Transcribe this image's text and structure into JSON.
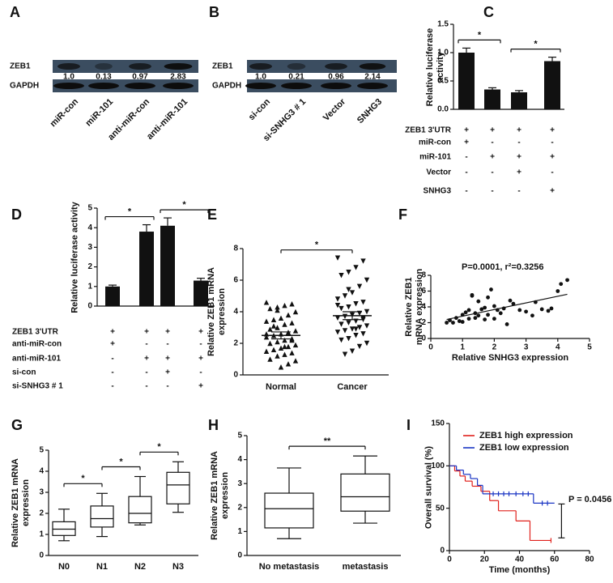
{
  "chart_data": [
    {
      "type": "blot",
      "label": "A",
      "rows": [
        "ZEB1",
        "GAPDH"
      ],
      "categories": [
        "miR-con",
        "miR-101",
        "anti-miR-con",
        "anti-miR-101"
      ],
      "values": [
        1.0,
        0.13,
        0.97,
        2.83
      ],
      "value_labels": [
        "1.0",
        "0.13",
        "0.97",
        "2.83"
      ]
    },
    {
      "type": "blot",
      "label": "B",
      "rows": [
        "ZEB1",
        "GAPDH"
      ],
      "categories": [
        "si-con",
        "si-SNHG3 # 1",
        "Vector",
        "SNHG3"
      ],
      "values": [
        1.0,
        0.21,
        0.96,
        2.14
      ],
      "value_labels": [
        "1.0",
        "0.21",
        "0.96",
        "2.14"
      ]
    },
    {
      "type": "bar",
      "label": "C",
      "ylabel": "Relative luciferase activity",
      "ylim": [
        0,
        1.5
      ],
      "yticks": [
        {
          "value": 0,
          "label": "0.0"
        },
        0.5,
        {
          "value": 1,
          "label": "1.0"
        },
        1.5
      ],
      "color": "#111111",
      "values": [
        1.0,
        0.35,
        0.3,
        0.85
      ],
      "errors": [
        0.08,
        0.03,
        0.03,
        0.07
      ],
      "conditions": [
        {
          "name": "ZEB1 3'UTR",
          "signs": [
            "+",
            "+",
            "+",
            "+"
          ]
        },
        {
          "name": "miR-con",
          "signs": [
            "+",
            "-",
            "-",
            "-"
          ]
        },
        {
          "name": "miR-101",
          "signs": [
            "-",
            "+",
            "+",
            "+"
          ]
        },
        {
          "name": "Vector",
          "signs": [
            "-",
            "-",
            "+",
            "-"
          ]
        },
        {
          "name": "SNHG3",
          "signs": [
            "-",
            "-",
            "-",
            "+"
          ]
        }
      ],
      "brackets": [
        {
          "pair": [
            0,
            1
          ],
          "label": "*"
        },
        {
          "pair": [
            2,
            3
          ],
          "label": "*"
        }
      ]
    },
    {
      "type": "bar",
      "label": "D",
      "ylabel": "Relative luciferase activity",
      "ylim": [
        0,
        5
      ],
      "yticks": [
        0,
        1,
        2,
        3,
        4,
        5
      ],
      "color": "#111111",
      "values": [
        1.0,
        3.8,
        4.1,
        1.3
      ],
      "errors": [
        0.07,
        0.35,
        0.4,
        0.12
      ],
      "conditions": [
        {
          "name": "ZEB1 3'UTR",
          "signs": [
            "+",
            "+",
            "+",
            "+"
          ]
        },
        {
          "name": "anti-miR-con",
          "signs": [
            "+",
            "-",
            "-",
            "-"
          ]
        },
        {
          "name": "anti-miR-101",
          "signs": [
            "-",
            "+",
            "+",
            "+"
          ]
        },
        {
          "name": "si-con",
          "signs": [
            "-",
            "-",
            "+",
            "-"
          ]
        },
        {
          "name": "si-SNHG3 # 1",
          "signs": [
            "-",
            "-",
            "-",
            "+"
          ]
        }
      ],
      "brackets": [
        {
          "pair": [
            0,
            1
          ],
          "label": "*"
        },
        {
          "pair": [
            2,
            3
          ],
          "label": "*"
        }
      ]
    },
    {
      "type": "dot",
      "label": "E",
      "ylabel": "Relative ZEB1 mRNA expression",
      "ylim": [
        0,
        8
      ],
      "yticks": [
        0,
        2,
        4,
        6,
        8
      ],
      "categories": [
        "Normal",
        "Cancer"
      ],
      "values": [
        [
          4.6,
          4.5,
          4.4,
          4.3,
          4.2,
          4.0,
          3.8,
          3.6,
          3.5,
          3.4,
          3.3,
          3.2,
          3.0,
          2.9,
          2.8,
          2.7,
          2.6,
          2.5,
          2.4,
          2.3,
          2.2,
          2.1,
          2.0,
          1.9,
          1.8,
          1.7,
          1.6,
          1.5,
          1.4,
          1.3,
          1.2,
          1.0,
          0.9,
          0.7,
          0.5,
          3.1,
          2.6,
          2.2,
          1.8,
          4.1
        ],
        [
          7.4,
          7.2,
          6.8,
          6.5,
          6.3,
          6.0,
          5.6,
          5.2,
          5.0,
          4.8,
          4.6,
          4.5,
          4.3,
          4.2,
          4.0,
          3.9,
          3.8,
          3.7,
          3.6,
          3.5,
          3.4,
          3.3,
          3.2,
          3.1,
          3.0,
          2.9,
          2.8,
          2.7,
          2.6,
          2.5,
          2.3,
          2.2,
          2.0,
          1.8,
          1.5,
          1.3,
          4.4,
          3.6,
          2.9,
          5.4
        ]
      ],
      "means": [
        2.5,
        3.75
      ],
      "sems": [
        0.22,
        0.25
      ],
      "brackets": [
        {
          "pair": [
            0,
            1
          ],
          "label": "*"
        }
      ]
    },
    {
      "type": "scatter",
      "label": "F",
      "annotation": "P=0.0001,  r²=0.3256",
      "xlabel": "Relative SNHG3 expression",
      "ylabel": "Relative ZEB1 mRNA expression",
      "xlim": [
        0,
        5
      ],
      "xticks": [
        0,
        1,
        2,
        3,
        4,
        5
      ],
      "ylim": [
        0,
        8
      ],
      "yticks": [
        0,
        2,
        4,
        6,
        8
      ],
      "x": [
        0.5,
        0.6,
        0.7,
        0.8,
        0.9,
        1.0,
        1.0,
        1.1,
        1.2,
        1.2,
        1.3,
        1.4,
        1.4,
        1.5,
        1.5,
        1.6,
        1.7,
        1.8,
        1.8,
        1.9,
        2.0,
        2.0,
        2.1,
        2.2,
        2.3,
        2.4,
        2.5,
        2.6,
        2.8,
        3.0,
        3.2,
        3.3,
        3.5,
        3.7,
        3.8,
        4.0,
        4.1,
        4.3,
        1.3,
        1.7
      ],
      "y": [
        2.0,
        2.3,
        2.0,
        2.6,
        2.2,
        3.0,
        2.1,
        3.3,
        2.5,
        3.6,
        5.4,
        3.2,
        2.6,
        4.7,
        2.9,
        3.7,
        2.4,
        5.2,
        3.0,
        6.2,
        2.5,
        4.1,
        3.6,
        3.2,
        3.8,
        1.8,
        4.8,
        4.4,
        3.6,
        3.4,
        2.9,
        4.6,
        3.7,
        3.5,
        3.8,
        6.0,
        6.9,
        7.4,
        5.5,
        3.9
      ],
      "fit": {
        "x": [
          0.5,
          4.3
        ],
        "y": [
          2.4,
          5.6
        ]
      }
    },
    {
      "type": "box",
      "label": "G",
      "ylabel": "Relative ZEB1 mRNA expression",
      "ylim": [
        0,
        5
      ],
      "yticks": [
        0,
        1,
        2,
        3,
        4,
        5
      ],
      "categories": [
        "N0",
        "N1",
        "N2",
        "N3"
      ],
      "boxes": [
        {
          "min": 0.7,
          "q1": 0.95,
          "median": 1.25,
          "q3": 1.6,
          "max": 2.2
        },
        {
          "min": 0.9,
          "q1": 1.35,
          "median": 1.75,
          "q3": 2.35,
          "max": 2.95
        },
        {
          "min": 1.45,
          "q1": 1.55,
          "median": 2.0,
          "q3": 2.8,
          "max": 3.75
        },
        {
          "min": 2.05,
          "q1": 2.45,
          "median": 3.35,
          "q3": 3.95,
          "max": 4.45
        }
      ],
      "brackets": [
        {
          "pair": [
            0,
            1
          ],
          "label": "*"
        },
        {
          "pair": [
            1,
            2
          ],
          "label": "*"
        },
        {
          "pair": [
            2,
            3
          ],
          "label": "*"
        }
      ]
    },
    {
      "type": "box",
      "label": "H",
      "ylabel": "Relative ZEB1 mRNA expression",
      "ylim": [
        0,
        5
      ],
      "yticks": [
        0,
        1,
        2,
        3,
        4,
        5
      ],
      "categories": [
        "No metastasis",
        "metastasis"
      ],
      "boxes": [
        {
          "min": 0.7,
          "q1": 1.15,
          "median": 1.95,
          "q3": 2.6,
          "max": 3.65
        },
        {
          "min": 1.35,
          "q1": 1.85,
          "median": 2.45,
          "q3": 3.4,
          "max": 4.15
        }
      ],
      "brackets": [
        {
          "pair": [
            0,
            1
          ],
          "label": "**"
        }
      ]
    },
    {
      "type": "survival",
      "label": "I",
      "xlabel": "Time (months)",
      "ylabel": "Overall survival (%)",
      "annotation": "P = 0.0456",
      "xlim": [
        0,
        80
      ],
      "xticks": [
        0,
        20,
        40,
        60,
        80
      ],
      "ylim": [
        0,
        150
      ],
      "yticks": [
        0,
        50,
        100,
        150
      ],
      "series": [
        {
          "name": "ZEB1 high expression",
          "color": "#e0201b",
          "x": [
            0,
            3,
            6,
            9,
            13,
            18,
            23,
            28,
            38,
            46,
            58
          ],
          "values": [
            100,
            94,
            88,
            82,
            76,
            70,
            59,
            47,
            35,
            12,
            12
          ],
          "censored": [
            58
          ]
        },
        {
          "name": "ZEB1 low expression",
          "color": "#1a35c4",
          "x": [
            0,
            4,
            8,
            12,
            16,
            19,
            48,
            60
          ],
          "values": [
            100,
            95,
            90,
            85,
            77,
            67,
            56,
            56
          ],
          "censored": [
            25,
            28,
            31,
            34,
            38,
            42,
            45,
            53,
            56
          ]
        }
      ]
    }
  ]
}
